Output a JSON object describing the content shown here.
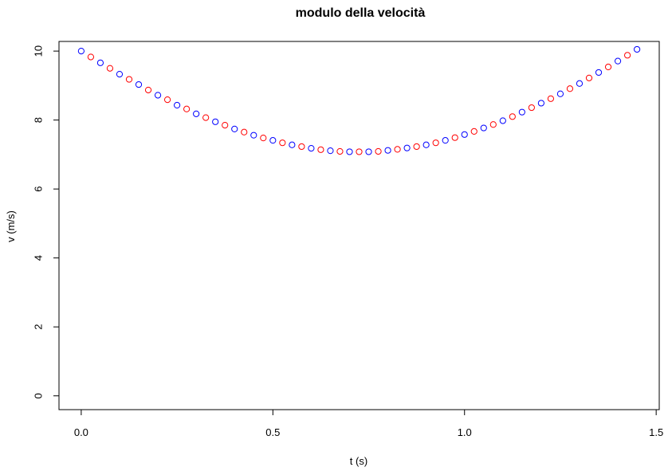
{
  "chart_data": {
    "type": "scatter",
    "title": "modulo della velocità",
    "xlabel": "t (s)",
    "ylabel": "v (m/s)",
    "xlim": [
      -0.058,
      1.508
    ],
    "ylim": [
      -0.4,
      10.28
    ],
    "x_ticks": [
      0,
      0.5,
      1.0,
      1.5
    ],
    "x_tick_labels": [
      "0.0",
      "0.5",
      "1.0",
      "1.5"
    ],
    "y_ticks": [
      0,
      2,
      4,
      6,
      8,
      10
    ],
    "y_tick_labels": [
      "0",
      "2",
      "4",
      "6",
      "8",
      "10"
    ],
    "grid": false,
    "series": [
      {
        "color": "#0000ff",
        "marker": "open-circle",
        "x": [
          0,
          0.05,
          0.1,
          0.15,
          0.2,
          0.25,
          0.3,
          0.35,
          0.4,
          0.45,
          0.5,
          0.55,
          0.6,
          0.65,
          0.7,
          0.75,
          0.8,
          0.85,
          0.9,
          0.95,
          1.0,
          1.05,
          1.1,
          1.15,
          1.2,
          1.25,
          1.3,
          1.35,
          1.4,
          1.45
        ],
        "y": [
          10.0,
          9.66,
          9.33,
          9.03,
          8.72,
          8.43,
          8.18,
          7.95,
          7.74,
          7.56,
          7.41,
          7.28,
          7.18,
          7.11,
          7.08,
          7.08,
          7.12,
          7.19,
          7.28,
          7.41,
          7.58,
          7.77,
          7.98,
          8.23,
          8.49,
          8.76,
          9.06,
          9.38,
          9.71,
          10.05
        ]
      },
      {
        "color": "#ff0000",
        "marker": "open-circle",
        "x": [
          0.025,
          0.075,
          0.125,
          0.175,
          0.225,
          0.275,
          0.325,
          0.375,
          0.425,
          0.475,
          0.525,
          0.575,
          0.625,
          0.675,
          0.725,
          0.775,
          0.825,
          0.875,
          0.925,
          0.975,
          1.025,
          1.075,
          1.125,
          1.175,
          1.225,
          1.275,
          1.325,
          1.375,
          1.425
        ],
        "y": [
          9.83,
          9.5,
          9.18,
          8.87,
          8.59,
          8.32,
          8.07,
          7.85,
          7.65,
          7.48,
          7.34,
          7.23,
          7.14,
          7.09,
          7.08,
          7.09,
          7.15,
          7.23,
          7.34,
          7.49,
          7.67,
          7.87,
          8.1,
          8.36,
          8.62,
          8.91,
          9.22,
          9.54,
          9.88
        ]
      }
    ]
  }
}
